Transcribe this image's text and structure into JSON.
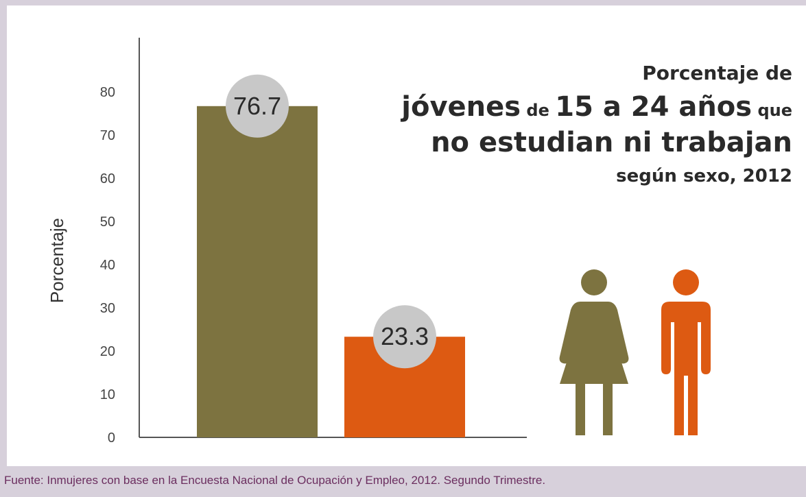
{
  "chart_data": {
    "type": "bar",
    "categories": [
      "",
      ""
    ],
    "values": [
      76.7,
      23.3
    ],
    "value_labels": [
      "76.7",
      "23.3"
    ],
    "bar_colors": [
      "#7d7340",
      "#dd5a12"
    ],
    "label_circle_color": "#c8c8c8",
    "ylabel": "Porcentaje",
    "yticks": [
      "0",
      "10",
      "20",
      "30",
      "40",
      "50",
      "60",
      "70",
      "80"
    ],
    "ylim": [
      0,
      90
    ],
    "grid": false,
    "icons": [
      "woman-figure-icon",
      "man-figure-icon"
    ]
  },
  "title": {
    "line1": "Porcentaje de",
    "line2_a": "jóvenes",
    "line2_b": " de ",
    "line2_c": "15 a 24 años",
    "line2_d": " que",
    "line3": "no estudian ni trabajan",
    "line4": "según sexo, 2012"
  },
  "source": "Fuente: Inmujeres con base en la Encuesta Nacional de Ocupación y Empleo, 2012. Segundo Trimestre."
}
